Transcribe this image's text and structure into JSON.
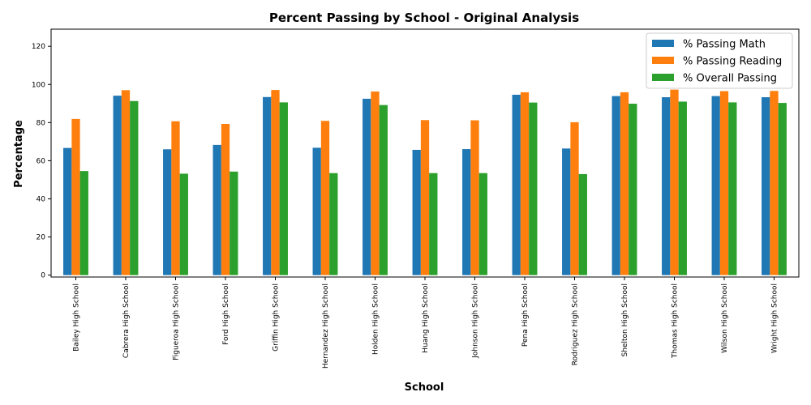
{
  "chart_data": {
    "type": "bar",
    "title": "Percent Passing by School - Original Analysis",
    "xlabel": "School",
    "ylabel": "Percentage",
    "ylim": [
      -1,
      129
    ],
    "yticks": [
      0,
      20,
      40,
      60,
      80,
      100,
      120
    ],
    "grid": false,
    "legend_position": "top-right",
    "categories": [
      "Bailey High School",
      "Cabrera High School",
      "Figueroa High School",
      "Ford High School",
      "Griffin High School",
      "Hernandez High School",
      "Holden High School",
      "Huang High School",
      "Johnson High School",
      "Pena High School",
      "Rodriguez High School",
      "Shelton High School",
      "Thomas High School",
      "Wilson High School",
      "Wright High School"
    ],
    "series": [
      {
        "name": "% Passing Math",
        "color": "#1f77b4",
        "values": [
          66.7,
          94.1,
          66.0,
          68.3,
          93.4,
          66.8,
          92.5,
          65.7,
          66.1,
          94.6,
          66.4,
          93.9,
          93.3,
          93.9,
          93.3
        ]
      },
      {
        "name": "% Passing Reading",
        "color": "#ff7f0e",
        "values": [
          81.9,
          97.0,
          80.7,
          79.3,
          97.1,
          80.9,
          96.3,
          81.3,
          81.2,
          95.9,
          80.2,
          95.9,
          97.3,
          96.5,
          96.6
        ]
      },
      {
        "name": "% Overall Passing",
        "color": "#2ca02c",
        "values": [
          54.6,
          91.3,
          53.2,
          54.3,
          90.6,
          53.5,
          89.2,
          53.5,
          53.5,
          90.5,
          53.0,
          89.9,
          91.0,
          90.6,
          90.3
        ]
      }
    ]
  }
}
